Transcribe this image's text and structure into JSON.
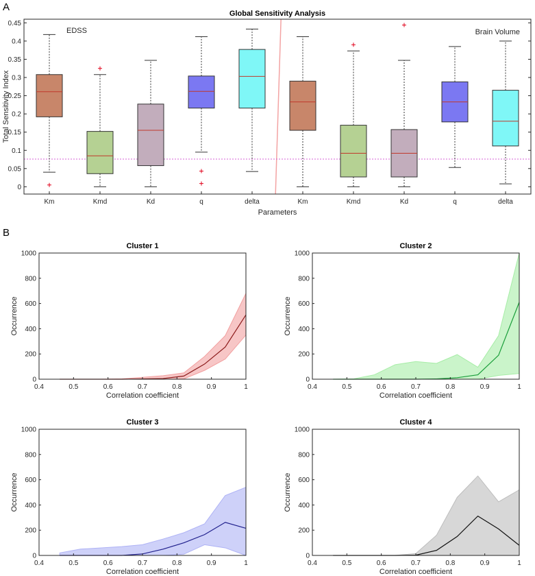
{
  "panel_labels": [
    "A",
    "B"
  ],
  "chart_data": [
    {
      "type": "box",
      "title": "Global Sensitivity Analysis",
      "xlabel": "Parameters",
      "ylabel": "Total Sensitivity Index",
      "ylim": [
        -0.02,
        0.46
      ],
      "yticks": [
        0,
        0.05,
        0.1,
        0.15,
        0.2,
        0.25,
        0.3,
        0.35,
        0.4,
        0.45
      ],
      "ytick_labels": [
        "0",
        "0.05",
        "0.1",
        "0.15",
        "0.2",
        "0.25",
        "0.3",
        "0.35",
        "0.4",
        "0.45"
      ],
      "groups": [
        "EDSS",
        "Brain Volume"
      ],
      "threshold": 0.076,
      "boxes": [
        {
          "label": "Km",
          "group": "EDSS",
          "color": "#c8866a",
          "whisker_low": 0.04,
          "q1": 0.192,
          "median": 0.261,
          "q3": 0.308,
          "whisker_high": 0.418,
          "outliers": [
            0.005
          ]
        },
        {
          "label": "Kmd",
          "group": "EDSS",
          "color": "#b5d193",
          "whisker_low": 0.0,
          "q1": 0.036,
          "median": 0.085,
          "q3": 0.152,
          "whisker_high": 0.308,
          "outliers": [
            0.325
          ]
        },
        {
          "label": "Kd",
          "group": "EDSS",
          "color": "#c2adbc",
          "whisker_low": 0.0,
          "q1": 0.058,
          "median": 0.155,
          "q3": 0.227,
          "whisker_high": 0.347,
          "outliers": []
        },
        {
          "label": "q",
          "group": "EDSS",
          "color": "#7b78f2",
          "whisker_low": 0.095,
          "q1": 0.216,
          "median": 0.262,
          "q3": 0.304,
          "whisker_high": 0.412,
          "outliers": [
            0.043,
            0.009
          ]
        },
        {
          "label": "delta",
          "group": "EDSS",
          "color": "#7ff7f7",
          "whisker_low": 0.042,
          "q1": 0.216,
          "median": 0.303,
          "q3": 0.377,
          "whisker_high": 0.433,
          "outliers": []
        },
        {
          "label": "Km",
          "group": "Brain Volume",
          "color": "#c8866a",
          "whisker_low": 0.0,
          "q1": 0.155,
          "median": 0.233,
          "q3": 0.29,
          "whisker_high": 0.412,
          "outliers": []
        },
        {
          "label": "Kmd",
          "group": "Brain Volume",
          "color": "#b5d193",
          "whisker_low": 0.0,
          "q1": 0.027,
          "median": 0.092,
          "q3": 0.169,
          "whisker_high": 0.373,
          "outliers": [
            0.39
          ]
        },
        {
          "label": "Kd",
          "group": "Brain Volume",
          "color": "#c2adbc",
          "whisker_low": 0.0,
          "q1": 0.027,
          "median": 0.092,
          "q3": 0.157,
          "whisker_high": 0.347,
          "outliers": [
            0.444
          ]
        },
        {
          "label": "q",
          "group": "Brain Volume",
          "color": "#7b78f2",
          "whisker_low": 0.053,
          "q1": 0.178,
          "median": 0.233,
          "q3": 0.288,
          "whisker_high": 0.385,
          "outliers": []
        },
        {
          "label": "delta",
          "group": "Brain Volume",
          "color": "#7ff7f7",
          "whisker_low": 0.008,
          "q1": 0.112,
          "median": 0.18,
          "q3": 0.265,
          "whisker_high": 0.4,
          "outliers": []
        }
      ]
    },
    {
      "type": "area",
      "title": "Cluster 1",
      "xlabel": "Correlation coefficient",
      "ylabel": "Occurrence",
      "xlim": [
        0.4,
        1
      ],
      "ylim": [
        0,
        1000
      ],
      "xticks": [
        0.4,
        0.5,
        0.6,
        0.7,
        0.8,
        0.9,
        1
      ],
      "xtick_labels": [
        "0.4",
        "0.5",
        "0.6",
        "0.7",
        "0.8",
        "0.9",
        "1"
      ],
      "yticks": [
        0,
        200,
        400,
        600,
        800,
        1000
      ],
      "ytick_labels": [
        "0",
        "200",
        "400",
        "600",
        "800",
        "1000"
      ],
      "line_color": "#8b1a1a",
      "fill_color": "#f2a0a0",
      "x": [
        0.46,
        0.52,
        0.58,
        0.64,
        0.7,
        0.76,
        0.82,
        0.88,
        0.94,
        1.0
      ],
      "mean": [
        0,
        0,
        0,
        0,
        2,
        5,
        25,
        120,
        255,
        510
      ],
      "upper": [
        0,
        0,
        0,
        3,
        15,
        28,
        50,
        180,
        345,
        680
      ],
      "lower": [
        0,
        0,
        0,
        0,
        0,
        0,
        3,
        70,
        160,
        350
      ]
    },
    {
      "type": "area",
      "title": "Cluster 2",
      "xlabel": "Correlation coefficient",
      "ylabel": "Occurrence",
      "xlim": [
        0.4,
        1
      ],
      "ylim": [
        0,
        1000
      ],
      "xticks": [
        0.4,
        0.5,
        0.6,
        0.7,
        0.8,
        0.9,
        1
      ],
      "xtick_labels": [
        "0.4",
        "0.5",
        "0.6",
        "0.7",
        "0.8",
        "0.9",
        "1"
      ],
      "yticks": [
        0,
        200,
        400,
        600,
        800,
        1000
      ],
      "ytick_labels": [
        "0",
        "200",
        "400",
        "600",
        "800",
        "1000"
      ],
      "line_color": "#1a9e3a",
      "fill_color": "#a6eda6",
      "x": [
        0.46,
        0.52,
        0.58,
        0.64,
        0.7,
        0.76,
        0.82,
        0.88,
        0.94,
        1.0
      ],
      "mean": [
        0,
        0,
        0,
        0,
        0,
        2,
        12,
        35,
        190,
        610
      ],
      "upper": [
        0,
        3,
        35,
        115,
        140,
        125,
        195,
        95,
        345,
        1000
      ],
      "lower": [
        0,
        0,
        0,
        0,
        0,
        0,
        0,
        0,
        30,
        45
      ]
    },
    {
      "type": "area",
      "title": "Cluster 3",
      "xlabel": "Correlation coefficient",
      "ylabel": "Occurrence",
      "xlim": [
        0.4,
        1
      ],
      "ylim": [
        0,
        1000
      ],
      "xticks": [
        0.4,
        0.5,
        0.6,
        0.7,
        0.8,
        0.9,
        1
      ],
      "xtick_labels": [
        "0.4",
        "0.5",
        "0.6",
        "0.7",
        "0.8",
        "0.9",
        "1"
      ],
      "yticks": [
        0,
        200,
        400,
        600,
        800,
        1000
      ],
      "ytick_labels": [
        "0",
        "200",
        "400",
        "600",
        "800",
        "1000"
      ],
      "line_color": "#1f1f8c",
      "fill_color": "#aeb2f5",
      "x": [
        0.46,
        0.52,
        0.58,
        0.64,
        0.7,
        0.76,
        0.82,
        0.88,
        0.94,
        1.0
      ],
      "mean": [
        0,
        0,
        0,
        0,
        12,
        50,
        100,
        165,
        262,
        215
      ],
      "upper": [
        20,
        50,
        60,
        70,
        85,
        130,
        180,
        250,
        475,
        540
      ],
      "lower": [
        0,
        0,
        0,
        0,
        0,
        0,
        10,
        85,
        60,
        0
      ]
    },
    {
      "type": "area",
      "title": "Cluster 4",
      "xlabel": "Correlation coefficient",
      "ylabel": "Occurrence",
      "xlim": [
        0.4,
        1
      ],
      "ylim": [
        0,
        1000
      ],
      "xticks": [
        0.4,
        0.5,
        0.6,
        0.7,
        0.8,
        0.9,
        1
      ],
      "xtick_labels": [
        "0.4",
        "0.5",
        "0.6",
        "0.7",
        "0.8",
        "0.9",
        "1"
      ],
      "yticks": [
        0,
        200,
        400,
        600,
        800,
        1000
      ],
      "ytick_labels": [
        "0",
        "200",
        "400",
        "600",
        "800",
        "1000"
      ],
      "line_color": "#111111",
      "fill_color": "#bdbdbd",
      "x": [
        0.46,
        0.52,
        0.58,
        0.64,
        0.7,
        0.76,
        0.82,
        0.88,
        0.94,
        1.0
      ],
      "mean": [
        0,
        0,
        0,
        0,
        2,
        40,
        150,
        312,
        210,
        80
      ],
      "upper": [
        0,
        0,
        0,
        0,
        15,
        160,
        460,
        630,
        425,
        520
      ],
      "lower": [
        0,
        0,
        0,
        0,
        0,
        0,
        0,
        0,
        0,
        0
      ]
    }
  ]
}
